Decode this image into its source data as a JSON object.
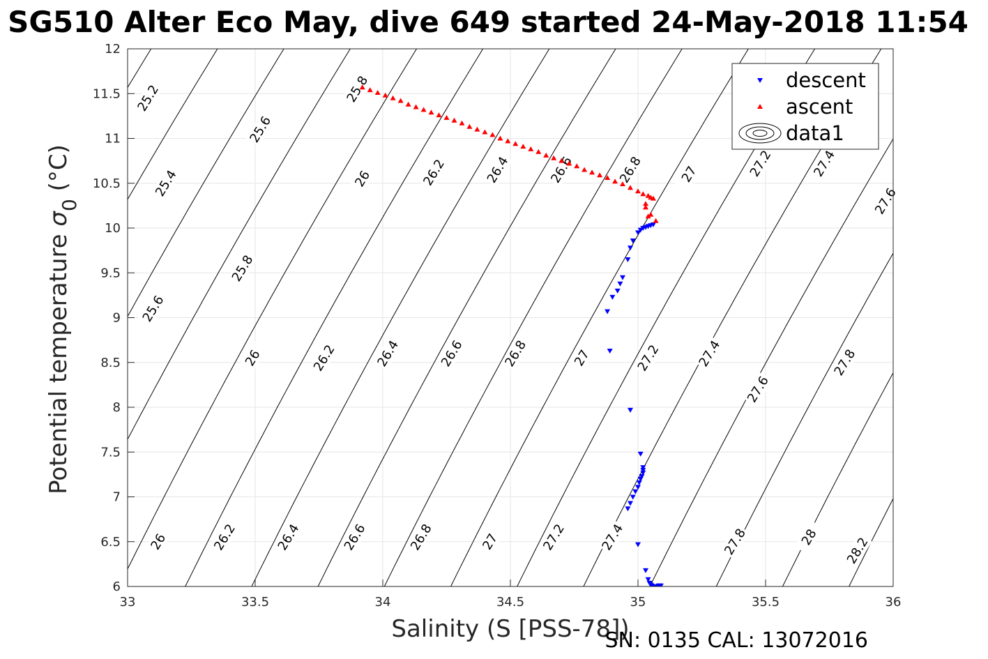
{
  "chart_data": {
    "type": "scatter",
    "title": "SG510 Alter Eco May, dive 649 started 24-May-2018 11:54",
    "xlabel": "Salinity (S [PSS-78])",
    "ylabel_main": "Potential temperature ",
    "ylabel_sigma": "σ",
    "ylabel_sub": "0",
    "ylabel_unit": " (°C)",
    "footer": "SN: 0135  CAL: 13072016",
    "xlim": [
      33,
      36
    ],
    "ylim": [
      6,
      12
    ],
    "xticks": [
      "33",
      "33.5",
      "34",
      "34.5",
      "35",
      "35.5",
      "36"
    ],
    "yticks": [
      "6",
      "6.5",
      "7",
      "7.5",
      "8",
      "8.5",
      "9",
      "9.5",
      "10",
      "10.5",
      "11",
      "11.5",
      "12"
    ],
    "grid": true,
    "legend_position": "top-right",
    "legend": [
      {
        "label": "descent",
        "marker": "triangle-down",
        "color": "#0000ff"
      },
      {
        "label": "ascent",
        "marker": "triangle-up",
        "color": "#ff0000"
      },
      {
        "label": "data1",
        "marker": "contour",
        "color": "#000000"
      }
    ],
    "contour_levels": [
      25.2,
      25.4,
      25.6,
      25.8,
      26,
      26.2,
      26.4,
      26.6,
      26.8,
      27,
      27.2,
      27.4,
      27.6,
      27.8,
      28,
      28.2
    ],
    "contour_labels": [
      {
        "text": "25.2",
        "s": 33.08,
        "t": 11.45
      },
      {
        "text": "25.4",
        "s": 33.15,
        "t": 10.5
      },
      {
        "text": "25.6",
        "s": 33.52,
        "t": 11.1
      },
      {
        "text": "25.6",
        "s": 33.1,
        "t": 9.1
      },
      {
        "text": "25.8",
        "s": 33.9,
        "t": 11.55
      },
      {
        "text": "25.8",
        "s": 33.45,
        "t": 9.55
      },
      {
        "text": "26",
        "s": 33.92,
        "t": 10.55
      },
      {
        "text": "26",
        "s": 33.49,
        "t": 8.55
      },
      {
        "text": "26",
        "s": 33.12,
        "t": 6.5
      },
      {
        "text": "26.2",
        "s": 34.2,
        "t": 10.62
      },
      {
        "text": "26.2",
        "s": 33.77,
        "t": 8.55
      },
      {
        "text": "26.2",
        "s": 33.38,
        "t": 6.55
      },
      {
        "text": "26.4",
        "s": 34.45,
        "t": 10.65
      },
      {
        "text": "26.4",
        "s": 34.02,
        "t": 8.6
      },
      {
        "text": "26.4",
        "s": 33.63,
        "t": 6.55
      },
      {
        "text": "26.6",
        "s": 34.7,
        "t": 10.65
      },
      {
        "text": "26.6",
        "s": 34.27,
        "t": 8.6
      },
      {
        "text": "26.6",
        "s": 33.89,
        "t": 6.55
      },
      {
        "text": "26.8",
        "s": 34.97,
        "t": 10.65
      },
      {
        "text": "26.8",
        "s": 34.52,
        "t": 8.6
      },
      {
        "text": "26.8",
        "s": 34.15,
        "t": 6.55
      },
      {
        "text": "27",
        "s": 35.2,
        "t": 10.6
      },
      {
        "text": "27",
        "s": 34.78,
        "t": 8.55
      },
      {
        "text": "27",
        "s": 34.42,
        "t": 6.5
      },
      {
        "text": "27.2",
        "s": 35.48,
        "t": 10.72
      },
      {
        "text": "27.2",
        "s": 35.04,
        "t": 8.55
      },
      {
        "text": "27.2",
        "s": 34.67,
        "t": 6.55
      },
      {
        "text": "27.4",
        "s": 35.73,
        "t": 10.72
      },
      {
        "text": "27.4",
        "s": 35.28,
        "t": 8.6
      },
      {
        "text": "27.4",
        "s": 34.9,
        "t": 6.55
      },
      {
        "text": "27.6",
        "s": 35.97,
        "t": 10.3
      },
      {
        "text": "27.6",
        "s": 35.47,
        "t": 8.2
      },
      {
        "text": "27.8",
        "s": 35.81,
        "t": 8.5
      },
      {
        "text": "27.8",
        "s": 35.38,
        "t": 6.5
      },
      {
        "text": "28",
        "s": 35.67,
        "t": 6.55
      },
      {
        "text": "28.2",
        "s": 35.86,
        "t": 6.4
      }
    ],
    "series": [
      {
        "name": "descent",
        "color": "#0000ff",
        "marker": "triangle-down",
        "x": [
          34.89,
          34.88,
          34.9,
          34.92,
          34.93,
          34.94,
          34.96,
          34.97,
          34.98,
          35.0,
          35.01,
          35.02,
          35.03,
          35.04,
          35.05,
          35.06,
          34.97,
          35.01,
          35.02,
          35.02,
          35.02,
          35.015,
          35.01,
          35.005,
          35.0,
          34.99,
          34.98,
          34.97,
          34.96,
          35.0,
          35.03,
          35.04,
          35.045,
          35.05,
          35.055,
          35.06,
          35.065,
          35.07,
          35.075,
          35.08,
          35.085,
          35.09
        ],
        "y": [
          8.63,
          9.07,
          9.23,
          9.3,
          9.38,
          9.45,
          9.65,
          9.78,
          9.86,
          9.95,
          9.98,
          10.0,
          10.01,
          10.02,
          10.03,
          10.04,
          7.97,
          7.48,
          7.33,
          7.3,
          7.27,
          7.23,
          7.2,
          7.16,
          7.11,
          7.06,
          7.0,
          6.93,
          6.87,
          6.47,
          6.18,
          6.08,
          6.04,
          6.02,
          6.01,
          6.0,
          6.0,
          6.0,
          6.0,
          6.01,
          6.01,
          6.01
        ]
      },
      {
        "name": "ascent",
        "color": "#ff0000",
        "marker": "triangle-up",
        "x": [
          33.92,
          33.95,
          33.98,
          34.01,
          34.04,
          34.07,
          34.1,
          34.13,
          34.16,
          34.19,
          34.22,
          34.25,
          34.28,
          34.31,
          34.34,
          34.37,
          34.4,
          34.43,
          34.46,
          34.49,
          34.52,
          34.55,
          34.58,
          34.61,
          34.64,
          34.67,
          34.7,
          34.73,
          34.76,
          34.79,
          34.82,
          34.85,
          34.88,
          34.91,
          34.94,
          34.97,
          35.0,
          35.02,
          35.04,
          35.05,
          35.06,
          35.03,
          35.03,
          35.04,
          35.05,
          35.07
        ],
        "y": [
          11.57,
          11.54,
          11.51,
          11.48,
          11.45,
          11.42,
          11.38,
          11.35,
          11.32,
          11.29,
          11.26,
          11.23,
          11.2,
          11.17,
          11.13,
          11.1,
          11.07,
          11.04,
          11.0,
          10.97,
          10.94,
          10.91,
          10.88,
          10.85,
          10.81,
          10.78,
          10.75,
          10.72,
          10.69,
          10.65,
          10.62,
          10.59,
          10.56,
          10.52,
          10.49,
          10.45,
          10.41,
          10.38,
          10.36,
          10.34,
          10.33,
          10.27,
          10.23,
          10.13,
          10.15,
          10.08
        ]
      }
    ]
  }
}
